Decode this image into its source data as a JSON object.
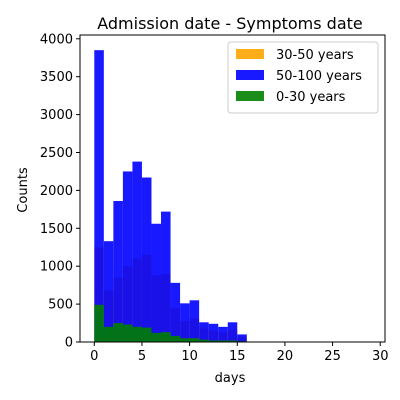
{
  "chart_data": {
    "type": "bar",
    "title": "Admission date - Symptoms date",
    "xlabel": "days",
    "ylabel": "Counts",
    "xlim": [
      -1.5,
      30.5
    ],
    "ylim": [
      0,
      4050
    ],
    "x_ticks": [
      0,
      5,
      10,
      15,
      20,
      25,
      30
    ],
    "y_ticks": [
      0,
      500,
      1000,
      1500,
      2000,
      2500,
      3000,
      3500,
      4000
    ],
    "bin_width": 1,
    "legend_position": "top-right",
    "grid": false,
    "series": [
      {
        "name": "30-50 years",
        "color": "#ffa500",
        "alpha": 0.9,
        "bins": [
          0,
          1,
          2,
          3,
          4,
          5,
          6,
          7,
          8,
          9,
          10,
          11,
          12,
          13,
          14,
          15
        ],
        "values": [
          1250,
          680,
          850,
          1000,
          1100,
          1150,
          880,
          900,
          450,
          280,
          310,
          180,
          150,
          130,
          160,
          60
        ]
      },
      {
        "name": "50-100 years",
        "color": "#0000ff",
        "alpha": 0.9,
        "bins": [
          0,
          1,
          2,
          3,
          4,
          5,
          6,
          7,
          8,
          9,
          10,
          11,
          12,
          13,
          14,
          15
        ],
        "values": [
          3850,
          1330,
          1860,
          2250,
          2380,
          2170,
          1560,
          1720,
          780,
          510,
          550,
          260,
          240,
          200,
          260,
          100
        ]
      },
      {
        "name": "0-30 years",
        "color": "#008000",
        "alpha": 0.9,
        "bins": [
          0,
          1,
          2,
          3,
          4,
          5,
          6,
          7,
          8,
          9,
          10,
          11,
          12,
          13,
          14,
          15
        ],
        "values": [
          490,
          200,
          250,
          230,
          200,
          190,
          120,
          130,
          80,
          50,
          50,
          30,
          20,
          20,
          20,
          10
        ]
      }
    ]
  }
}
